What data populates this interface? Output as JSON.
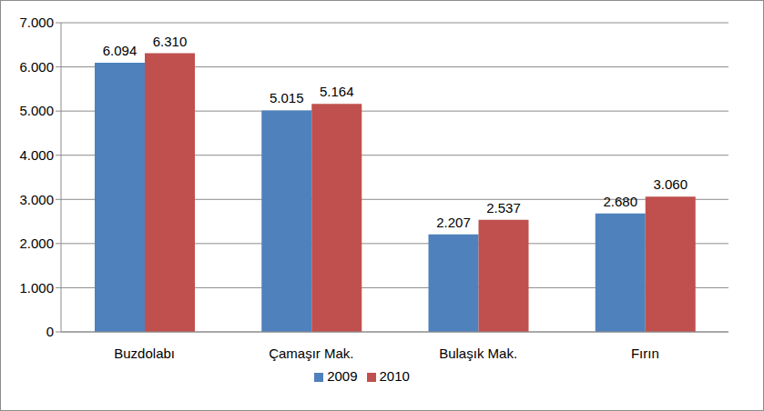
{
  "chart_data": {
    "type": "bar",
    "categories": [
      "Buzdolabı",
      "Çamaşır Mak.",
      "Bulaşık Mak.",
      "Fırın"
    ],
    "series": [
      {
        "name": "2009",
        "color": "#4f81bd",
        "values": [
          6094,
          5015,
          2207,
          2680
        ],
        "value_labels": [
          "6.094",
          "5.015",
          "2.207",
          "2.680"
        ]
      },
      {
        "name": "2010",
        "color": "#c0504d",
        "values": [
          6310,
          5164,
          2537,
          3060
        ],
        "value_labels": [
          "6.310",
          "5.164",
          "2.537",
          "3.060"
        ]
      }
    ],
    "ylim": [
      0,
      7000
    ],
    "yticks": [
      0,
      {
        "value": 1000,
        "label": "1.000"
      },
      {
        "value": 2000,
        "label": "2.000"
      },
      {
        "value": 3000,
        "label": "3.000"
      },
      {
        "value": 4000,
        "label": "4.000"
      },
      {
        "value": 5000,
        "label": "5.000"
      },
      {
        "value": 6000,
        "label": "6.000"
      },
      {
        "value": 7000,
        "label": "7.000"
      }
    ],
    "grid": true,
    "legend": "bottom",
    "data_labels": true
  }
}
